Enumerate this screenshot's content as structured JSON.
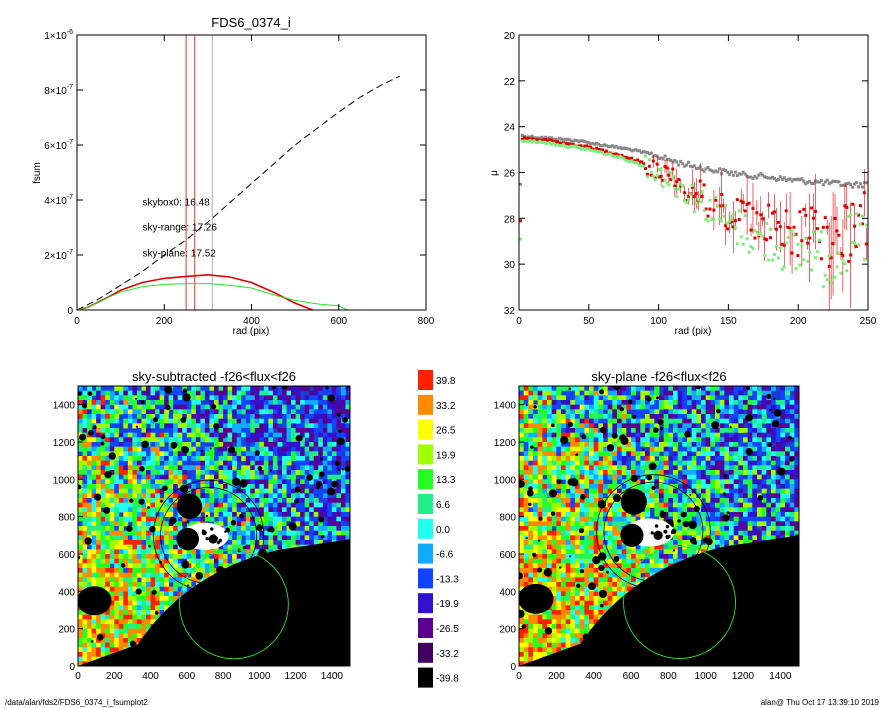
{
  "footer": {
    "path": "/data/alan/fds2/FDS6_0374_i_fsumplot2",
    "stamp": "alan@  Thu Oct 17 13:39:10 2019"
  },
  "colors": {
    "curve_total": "#000000",
    "curve_range": "#e00000",
    "curve_plane": "#2ee02e",
    "points_box": "#888888",
    "points_range": "#e00000",
    "points_plane": "#7cf07c"
  },
  "chart_data": [
    {
      "type": "line",
      "title": "FDS6_0374_i",
      "xlabel": "rad (pix)",
      "ylabel": "fsum",
      "xlim": [
        0,
        800
      ],
      "ylim": [
        0,
        1e-06
      ],
      "x_ticks": [
        "0",
        "200",
        "400",
        "600",
        "800"
      ],
      "y_ticks": [
        {
          "mant": "0",
          "exp": ""
        },
        {
          "mant": "2×10",
          "exp": "-7"
        },
        {
          "mant": "4×10",
          "exp": "-7"
        },
        {
          "mant": "6×10",
          "exp": "-7"
        },
        {
          "mant": "8×10",
          "exp": "-7"
        },
        {
          "mant": "1×10",
          "exp": "-6"
        }
      ],
      "vlines": [
        {
          "x": 250,
          "color": "#e00000"
        },
        {
          "x": 270,
          "color": "#e00000"
        },
        {
          "x": 310,
          "color": "#999999"
        }
      ],
      "annotations": [
        {
          "text": "skybox0: 16.48",
          "color": "#000000",
          "x": 150,
          "y": 3.8e-07
        },
        {
          "text": "sky-range: 17.26",
          "color": "#e00000",
          "x": 150,
          "y": 2.9e-07
        },
        {
          "text": "sky-plane: 17.52",
          "color": "#2ee02e",
          "x": 150,
          "y": 1.95e-07
        }
      ],
      "series": [
        {
          "style": "dashed",
          "color": "#000000",
          "x": [
            0,
            50,
            100,
            150,
            200,
            250,
            300,
            350,
            400,
            450,
            500,
            550,
            600,
            650,
            700,
            740
          ],
          "y": [
            0,
            4e-08,
            9e-08,
            1.4e-07,
            2e-07,
            2.55e-07,
            3.2e-07,
            3.9e-07,
            4.6e-07,
            5.3e-07,
            6e-07,
            6.6e-07,
            7.2e-07,
            7.75e-07,
            8.2e-07,
            8.5e-07
          ]
        },
        {
          "style": "solid",
          "color": "#e00000",
          "x": [
            0,
            25,
            50,
            75,
            100,
            150,
            200,
            250,
            300,
            350,
            400,
            450,
            500,
            540
          ],
          "y": [
            0,
            1e-08,
            3e-08,
            5e-08,
            7.2e-08,
            1e-07,
            1.15e-07,
            1.22e-07,
            1.28e-07,
            1.2e-07,
            1e-07,
            6.5e-08,
            2.5e-08,
            0
          ]
        },
        {
          "style": "solid",
          "color": "#2ee02e",
          "x": [
            0,
            25,
            50,
            75,
            100,
            150,
            200,
            250,
            300,
            350,
            400,
            450,
            500,
            550,
            600,
            620
          ],
          "y": [
            0,
            1e-08,
            2.8e-08,
            4.8e-08,
            6.5e-08,
            8.5e-08,
            9.3e-08,
            9.6e-08,
            9.6e-08,
            9e-08,
            8e-08,
            5.5e-08,
            3.5e-08,
            2.2e-08,
            1.5e-08,
            0
          ]
        }
      ]
    },
    {
      "type": "scatter",
      "title": "",
      "xlabel": "rad (pix)",
      "ylabel": "μ",
      "xlim": [
        0,
        250
      ],
      "ylim": [
        32,
        20
      ],
      "x_ticks": [
        "0",
        "50",
        "100",
        "150",
        "200",
        "250"
      ],
      "y_ticks": [
        "20",
        "22",
        "24",
        "26",
        "28",
        "30",
        "32"
      ],
      "series": [
        {
          "color": "#888888",
          "x": [
            2,
            10,
            20,
            30,
            40,
            50,
            60,
            70,
            80,
            90,
            100,
            110,
            120,
            130,
            140,
            150,
            160,
            170,
            180,
            190,
            200,
            210,
            220,
            230,
            240,
            250
          ],
          "y": [
            24.4,
            24.45,
            24.5,
            24.55,
            24.6,
            24.7,
            24.8,
            24.9,
            25.0,
            25.15,
            25.3,
            25.5,
            25.65,
            25.8,
            25.9,
            26.0,
            26.1,
            26.15,
            26.2,
            26.3,
            26.35,
            26.4,
            26.45,
            26.5,
            26.55,
            26.5
          ]
        },
        {
          "color": "#e00000",
          "x": [
            2,
            10,
            20,
            30,
            40,
            50,
            60,
            70,
            80,
            90,
            100,
            110,
            120,
            130,
            140,
            150,
            160,
            170,
            180,
            190,
            200,
            210,
            220,
            230,
            240,
            250
          ],
          "y": [
            24.5,
            24.55,
            24.6,
            24.7,
            24.8,
            24.9,
            25.05,
            25.2,
            25.4,
            25.6,
            25.9,
            26.2,
            26.6,
            27.0,
            27.4,
            27.7,
            28.0,
            28.3,
            28.0,
            28.4,
            28.6,
            28.2,
            29.0,
            28.8,
            28.5,
            28.1
          ]
        },
        {
          "color": "#7cf07c",
          "x": [
            2,
            10,
            20,
            30,
            40,
            50,
            60,
            70,
            80,
            90,
            100,
            110,
            120,
            130,
            140,
            150,
            160,
            170,
            180,
            190,
            200,
            210,
            220,
            230,
            240,
            250
          ],
          "y": [
            24.6,
            24.65,
            24.7,
            24.8,
            24.9,
            25.0,
            25.15,
            25.3,
            25.5,
            25.7,
            26.0,
            26.4,
            26.8,
            27.3,
            27.7,
            28.2,
            28.5,
            28.9,
            29.0,
            29.3,
            29.6,
            29.2,
            30.0,
            29.4,
            29.1,
            28.9
          ]
        }
      ]
    },
    {
      "type": "heatmap",
      "title": "sky-subtracted -f26<flux<f26",
      "xlim": [
        0,
        1500
      ],
      "ylim": [
        0,
        1500
      ],
      "x_ticks": [
        "0",
        "200",
        "400",
        "600",
        "800",
        "1000",
        "1200",
        "1400"
      ],
      "y_ticks": [
        "0",
        "200",
        "400",
        "600",
        "800",
        "1000",
        "1200",
        "1400"
      ]
    },
    {
      "type": "heatmap",
      "title": "sky-plane -f26<flux<f26",
      "xlim": [
        0,
        1500
      ],
      "ylim": [
        0,
        1500
      ],
      "x_ticks": [
        "0",
        "200",
        "400",
        "600",
        "800",
        "1000",
        "1200",
        "1400"
      ],
      "y_ticks": [
        "0",
        "200",
        "400",
        "600",
        "800",
        "1000",
        "1200",
        "1400"
      ]
    }
  ],
  "colorbar": {
    "labels": [
      "39.8",
      "33.2",
      "26.5",
      "19.9",
      "13.3",
      "6.6",
      "0.0",
      "-6.6",
      "-13.3",
      "-19.9",
      "-26.5",
      "-33.2",
      "-39.8"
    ],
    "colors": [
      "#ff2000",
      "#ff8a00",
      "#ffff00",
      "#9dff00",
      "#22ff22",
      "#22ee88",
      "#22ffee",
      "#11aaff",
      "#1144ff",
      "#3311cc",
      "#5a0090",
      "#400060",
      "#000000"
    ]
  }
}
